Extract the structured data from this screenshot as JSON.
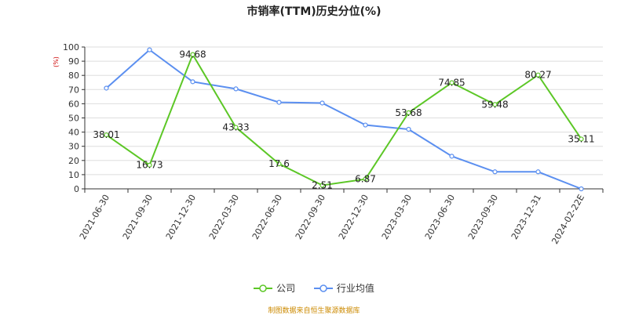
{
  "chart_data": {
    "type": "line",
    "title": "市销率(TTM)历史分位(%)",
    "y_unit": "(%)",
    "ylim": [
      0,
      100
    ],
    "yticks": [
      0,
      10,
      20,
      30,
      40,
      50,
      60,
      70,
      80,
      90,
      100
    ],
    "grid": true,
    "legend_position": "bottom",
    "categories": [
      "2021-06-30",
      "2021-09-30",
      "2021-12-30",
      "2022-03-30",
      "2022-06-30",
      "2022-09-30",
      "2022-12-30",
      "2023-03-30",
      "2023-06-30",
      "2023-09-30",
      "2023-12-31",
      "2024-02-22E"
    ],
    "series": [
      {
        "name": "公司",
        "color": "#5cc726",
        "values": [
          38.01,
          16.73,
          94.68,
          43.33,
          17.6,
          2.51,
          6.87,
          53.68,
          74.85,
          59.48,
          80.27,
          35.11
        ],
        "labels": [
          "38.01",
          "16.73",
          "94.68",
          "43.33",
          "17.6",
          "2.51",
          "6.87",
          "53.68",
          "74.85",
          "59.48",
          "80.27",
          "35.11"
        ]
      },
      {
        "name": "行业均值",
        "color": "#5b8ff0",
        "values": [
          71,
          98,
          75.5,
          70.5,
          61,
          60.5,
          45,
          42,
          23,
          12,
          12,
          0
        ]
      }
    ]
  },
  "legend": {
    "company": "公司",
    "industry": "行业均值"
  },
  "source": "制图数据来自恒生聚源数据库"
}
